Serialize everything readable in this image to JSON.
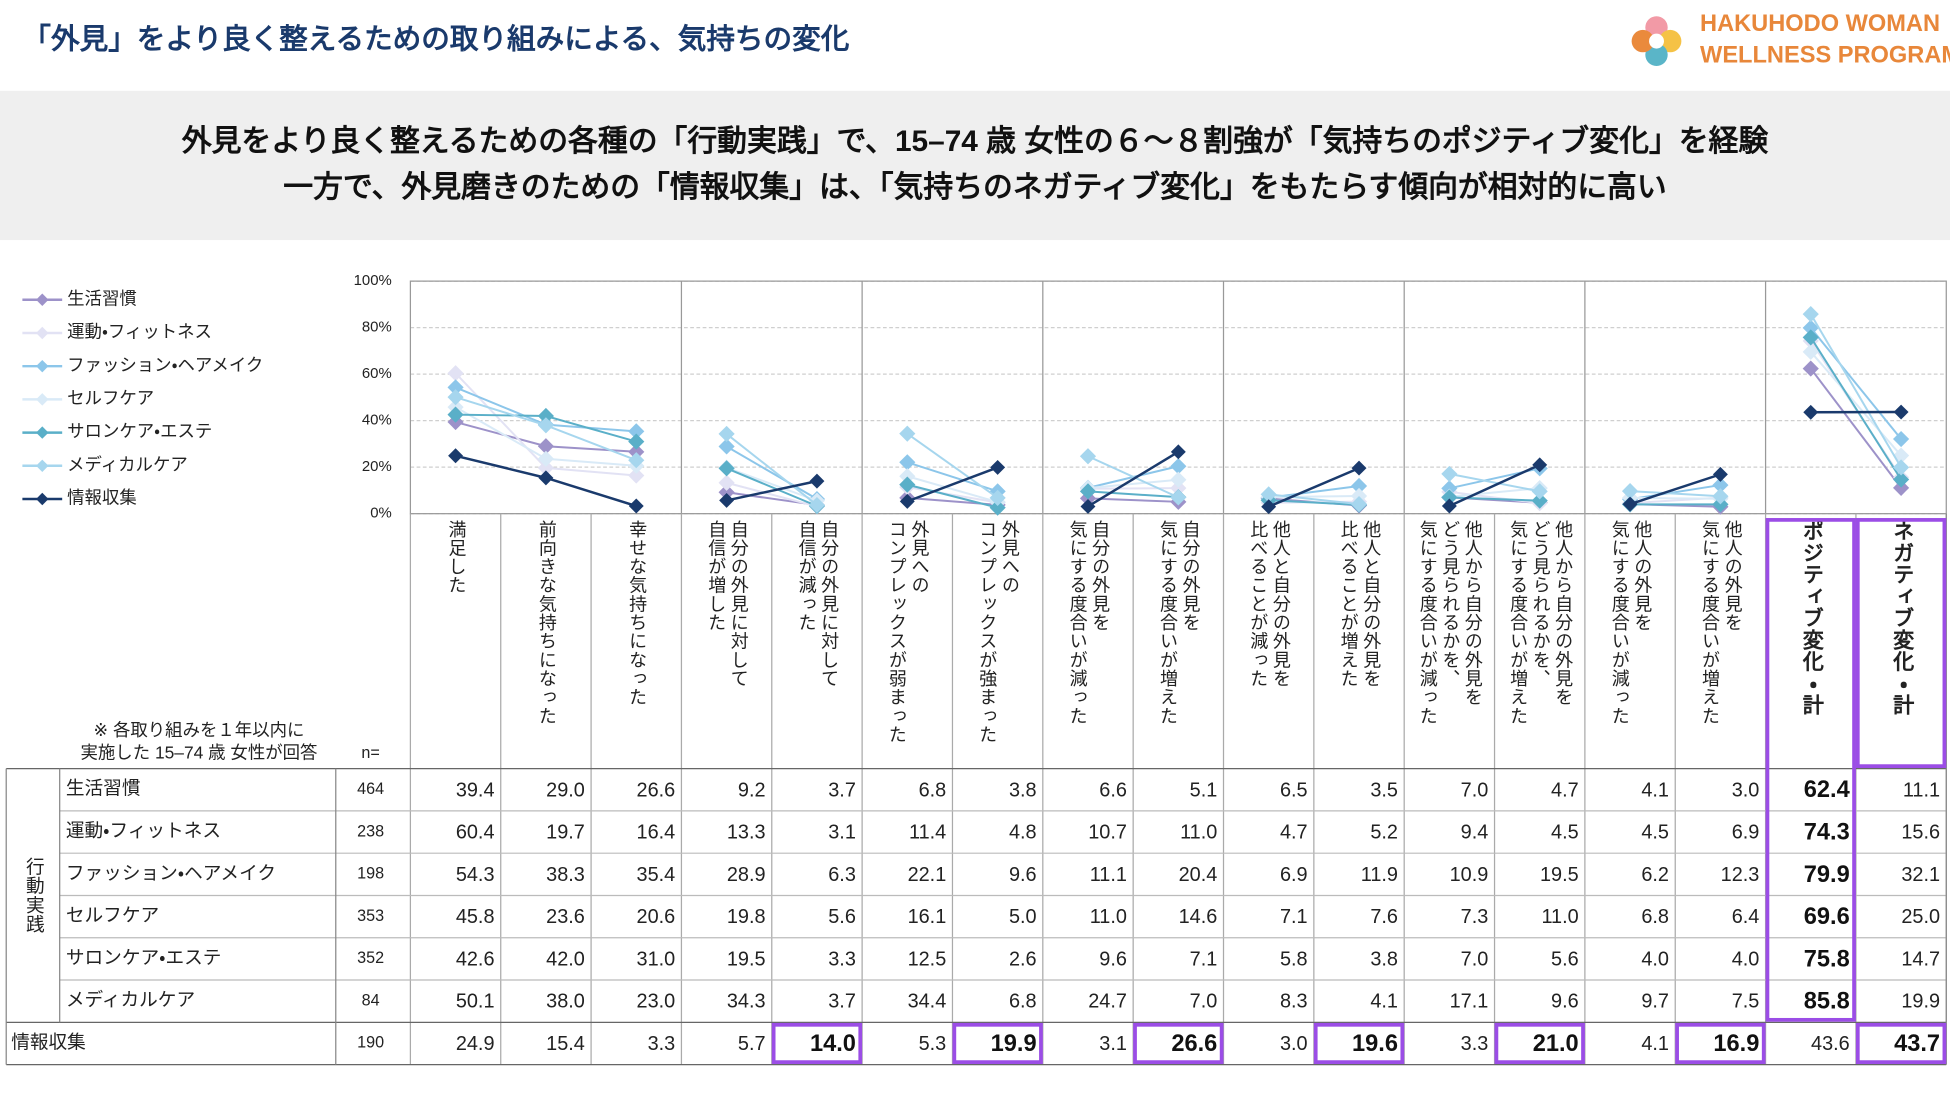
{
  "header": {
    "title": "「外見」をより良く整えるための取り組みによる、気持ちの変化",
    "logo": [
      "HAKUHODO WOMAN",
      "WELLNESS PROGRAM"
    ]
  },
  "headline": [
    "外見をより良く整えるための各種の「行動実践」で、15–74 歳 女性の６～８割強が「気持ちのポジティブ変化」を経験",
    "一方で、外見磨きのための「情報収集」は、「気持ちのネガティブ変化」をもたらす傾向が相対的に高い"
  ],
  "chart_data": {
    "type": "line",
    "categories": [
      "満足した",
      "前向きな気持ちになった",
      "幸せな気持ちになった",
      "自分の外見に対して\n自信が増した",
      "自分の外見に対して\n自信が減った",
      "外見への\nコンプレックスが弱まった",
      "外見への\nコンプレックスが強まった",
      "自分の外見を\n気にする度合いが減った",
      "自分の外見を\n気にする度合いが増えた",
      "他人と自分の外見を\n比べることが減った",
      "他人と自分の外見を\n比べることが増えた",
      "他人から自分の外見を\nどう見られるかを、\n気にする度合いが減った",
      "他人から自分の外見を\nどう見られるかを、\n気にする度合いが増えた",
      "他人の外見を\n気にする度合いが減った",
      "他人の外見を\n気にする度合いが増えた",
      "ポジティブ変化・計",
      "ネガティブ変化・計"
    ],
    "ylim": [
      0,
      100
    ],
    "yticks": [
      {
        "value": 0,
        "label": "0%"
      },
      {
        "value": 20,
        "label": "20%"
      },
      {
        "value": 40,
        "label": "40%"
      },
      {
        "value": 60,
        "label": "60%"
      },
      {
        "value": 80,
        "label": "80%"
      },
      {
        "value": 100,
        "label": "100%"
      }
    ],
    "grid": true,
    "series": [
      {
        "name": "生活習慣",
        "color": "#9d92c9",
        "n": 464,
        "values": [
          39.4,
          29.0,
          26.6,
          9.2,
          3.7,
          6.8,
          3.8,
          6.6,
          5.1,
          6.5,
          3.5,
          7.0,
          4.7,
          4.1,
          3.0,
          62.4,
          11.1
        ],
        "value_labels": [
          "39.4",
          "29.0",
          "26.6",
          "9.2",
          "3.7",
          "6.8",
          "3.8",
          "6.6",
          "5.1",
          "6.5",
          "3.5",
          "7.0",
          "4.7",
          "4.1",
          "3.0",
          "62.4",
          "11.1"
        ]
      },
      {
        "name": "運動・フィットネス",
        "color": "#e2e2f4",
        "n": 238,
        "values": [
          60.4,
          19.7,
          16.4,
          13.3,
          3.1,
          11.4,
          4.8,
          10.7,
          11.0,
          4.7,
          5.2,
          9.4,
          4.5,
          4.5,
          6.9,
          74.3,
          15.6
        ],
        "value_labels": [
          "60.4",
          "19.7",
          "16.4",
          "13.3",
          "3.1",
          "11.4",
          "4.8",
          "10.7",
          "11.0",
          "4.7",
          "5.2",
          "9.4",
          "4.5",
          "4.5",
          "6.9",
          "74.3",
          "15.6"
        ]
      },
      {
        "name": "ファッション・ヘアメイク",
        "color": "#8cc6ea",
        "n": 198,
        "values": [
          54.3,
          38.3,
          35.4,
          28.9,
          6.3,
          22.1,
          9.6,
          11.1,
          20.4,
          6.9,
          11.9,
          10.9,
          19.5,
          6.2,
          12.3,
          79.9,
          32.1
        ],
        "value_labels": [
          "54.3",
          "38.3",
          "35.4",
          "28.9",
          "6.3",
          "22.1",
          "9.6",
          "11.1",
          "20.4",
          "6.9",
          "11.9",
          "10.9",
          "19.5",
          "6.2",
          "12.3",
          "79.9",
          "32.1"
        ]
      },
      {
        "name": "セルフケア",
        "color": "#d9eaf7",
        "n": 353,
        "values": [
          45.8,
          23.6,
          20.6,
          19.8,
          5.6,
          16.1,
          5.0,
          11.0,
          14.6,
          7.1,
          7.6,
          7.3,
          11.0,
          6.8,
          6.4,
          69.6,
          25.0
        ],
        "value_labels": [
          "45.8",
          "23.6",
          "20.6",
          "19.8",
          "5.6",
          "16.1",
          "5.0",
          "11.0",
          "14.6",
          "7.1",
          "7.6",
          "7.3",
          "11.0",
          "6.8",
          "6.4",
          "69.6",
          "25.0"
        ]
      },
      {
        "name": "サロンケア・エステ",
        "color": "#5aafc8",
        "n": 352,
        "values": [
          42.6,
          42.0,
          31.0,
          19.5,
          3.3,
          12.5,
          2.6,
          9.6,
          7.1,
          5.8,
          3.8,
          7.0,
          5.6,
          4.0,
          4.0,
          75.8,
          14.7
        ],
        "value_labels": [
          "42.6",
          "42.0",
          "31.0",
          "19.5",
          "3.3",
          "12.5",
          "2.6",
          "9.6",
          "7.1",
          "5.8",
          "3.8",
          "7.0",
          "5.6",
          "4.0",
          "4.0",
          "75.8",
          "14.7"
        ]
      },
      {
        "name": "メディカルケア",
        "color": "#a6d6ee",
        "n": 84,
        "values": [
          50.1,
          38.0,
          23.0,
          34.3,
          3.7,
          34.4,
          6.8,
          24.7,
          7.0,
          8.3,
          4.1,
          17.1,
          9.6,
          9.7,
          7.5,
          85.8,
          19.9
        ],
        "value_labels": [
          "50.1",
          "38.0",
          "23.0",
          "34.3",
          "3.7",
          "34.4",
          "6.8",
          "24.7",
          "7.0",
          "8.3",
          "4.1",
          "17.1",
          "9.6",
          "9.7",
          "7.5",
          "85.8",
          "19.9"
        ]
      },
      {
        "name": "情報収集",
        "color": "#1a3a6c",
        "n": 190,
        "values": [
          24.9,
          15.4,
          3.3,
          5.7,
          14.0,
          5.3,
          19.9,
          3.1,
          26.6,
          3.0,
          19.6,
          3.3,
          21.0,
          4.1,
          16.9,
          43.6,
          43.7
        ],
        "value_labels": [
          "24.9",
          "15.4",
          "3.3",
          "5.7",
          "14.0",
          "5.3",
          "19.9",
          "3.1",
          "26.6",
          "3.0",
          "19.6",
          "3.3",
          "21.0",
          "4.1",
          "16.9",
          "43.6",
          "43.7"
        ]
      }
    ]
  },
  "table": {
    "note": [
      "※ 各取り組みを１年以内に",
      "実施した 15–74 歳 女性が回答"
    ],
    "n_label": "n=",
    "group_label": "行動実践"
  }
}
